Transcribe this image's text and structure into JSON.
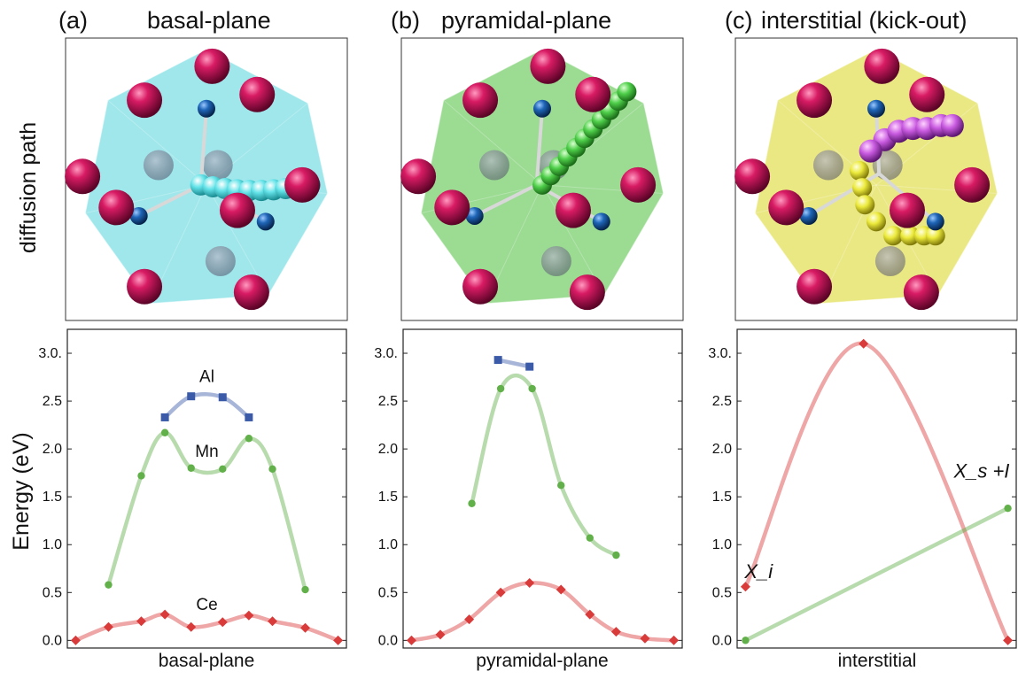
{
  "row_labels": {
    "top": "diffusion path",
    "bottom": "Energy (eV)"
  },
  "panels": [
    {
      "letter": "(a)",
      "title": "basal-plane",
      "polyhedron_color": "#7fdfe4",
      "path_atom_color": "#63e3e8"
    },
    {
      "letter": "(b)",
      "title": "pyramidal-plane",
      "polyhedron_color": "#79cf6e",
      "path_atom_color": "#4fcf4a"
    },
    {
      "letter": "(c)",
      "title": "interstitial (kick-out)",
      "polyhedron_color": "#e3e05a",
      "path_atom_color": "#ecea3c",
      "path_atom_color_2": "#c95be0"
    }
  ],
  "atom_colors": {
    "host": "#c4145a",
    "solute": "#1f66b8"
  },
  "chart_data": [
    {
      "type": "line",
      "xlabel": "basal-plane",
      "ylabel": "Energy (eV)",
      "ylim": [
        -0.08,
        3.25
      ],
      "yticks": [
        "0.0",
        "0.5",
        "1.0",
        "1.5",
        "2.0",
        "2.5",
        "3.0."
      ],
      "annotations": [
        "Al",
        "Mn",
        "Ce"
      ],
      "series": [
        {
          "name": "Al",
          "color": "#3b5ba8",
          "marker": "square",
          "x": [
            0.34,
            0.44,
            0.56,
            0.66
          ],
          "y": [
            2.33,
            2.55,
            2.54,
            2.33
          ]
        },
        {
          "name": "Mn",
          "color": "#62b04a",
          "marker": "circle",
          "x": [
            0.125,
            0.25,
            0.34,
            0.44,
            0.56,
            0.66,
            0.75,
            0.875
          ],
          "y": [
            0.58,
            1.72,
            2.17,
            1.8,
            1.79,
            2.11,
            1.79,
            0.53
          ]
        },
        {
          "name": "Ce",
          "color": "#d93a3a",
          "marker": "diamond",
          "x": [
            0.0,
            0.125,
            0.25,
            0.34,
            0.44,
            0.56,
            0.66,
            0.75,
            0.875,
            1.0
          ],
          "y": [
            0.0,
            0.14,
            0.2,
            0.27,
            0.14,
            0.19,
            0.26,
            0.2,
            0.13,
            0.0
          ]
        }
      ]
    },
    {
      "type": "line",
      "xlabel": "pyramidal-plane",
      "ylabel": "",
      "ylim": [
        -0.08,
        3.25
      ],
      "yticks": [
        "0.0",
        "0.5",
        "1.0",
        "1.5",
        "2.0",
        "2.5",
        "3.0."
      ],
      "annotations": [],
      "series": [
        {
          "name": "Al",
          "color": "#3b5ba8",
          "marker": "square",
          "x": [
            0.33,
            0.45
          ],
          "y": [
            2.93,
            2.86
          ]
        },
        {
          "name": "Mn",
          "color": "#62b04a",
          "marker": "circle",
          "x": [
            0.23,
            0.34,
            0.46,
            0.57,
            0.68,
            0.78
          ],
          "y": [
            1.43,
            2.63,
            2.63,
            1.62,
            1.07,
            0.89
          ]
        },
        {
          "name": "Ce",
          "color": "#d93a3a",
          "marker": "diamond",
          "x": [
            0.0,
            0.11,
            0.22,
            0.34,
            0.45,
            0.57,
            0.68,
            0.78,
            0.89,
            1.0
          ],
          "y": [
            0.0,
            0.06,
            0.22,
            0.5,
            0.6,
            0.53,
            0.27,
            0.09,
            0.02,
            0.0
          ]
        }
      ]
    },
    {
      "type": "line",
      "xlabel": "interstitial",
      "ylabel": "",
      "ylim": [
        -0.08,
        3.25
      ],
      "yticks": [
        "0.0",
        "0.5",
        "1.0",
        "1.5",
        "2.0",
        "2.5",
        "3.0."
      ],
      "annotations": [
        "X_i",
        "X_s +I"
      ],
      "series": [
        {
          "name": "Ce",
          "color": "#d93a3a",
          "marker": "diamond",
          "x": [
            0.0,
            0.45,
            1.0
          ],
          "y": [
            0.56,
            3.1,
            0.0
          ]
        },
        {
          "name": "Mn",
          "color": "#62b04a",
          "marker": "circle",
          "x": [
            0.0,
            1.0
          ],
          "y": [
            0.0,
            1.38
          ]
        }
      ]
    }
  ]
}
